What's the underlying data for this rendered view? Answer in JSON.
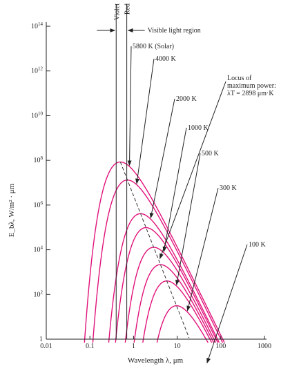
{
  "chart_data": {
    "type": "line",
    "title": "",
    "xlabel": "Wavelength λ, μm",
    "ylabel": "E_bλ, W/m² · μm",
    "x_scale": "log",
    "y_scale": "log",
    "xlim": [
      0.01,
      1000
    ],
    "ylim": [
      1,
      100000000000000.0
    ],
    "x_ticks": [
      {
        "v": 0.01,
        "label": "0.01"
      },
      {
        "v": 0.1,
        "label": "0.1"
      },
      {
        "v": 1,
        "label": "1"
      },
      {
        "v": 10,
        "label": "10"
      },
      {
        "v": 100,
        "label": "100"
      },
      {
        "v": 1000,
        "label": "1000"
      }
    ],
    "y_ticks": [
      {
        "v": 1,
        "base": "1",
        "exp": ""
      },
      {
        "v": 100,
        "base": "10",
        "exp": "2"
      },
      {
        "v": 10000,
        "base": "10",
        "exp": "4"
      },
      {
        "v": 1000000,
        "base": "10",
        "exp": "6"
      },
      {
        "v": 100000000,
        "base": "10",
        "exp": "8"
      },
      {
        "v": 10000000000,
        "base": "10",
        "exp": "10"
      },
      {
        "v": 1000000000000,
        "base": "10",
        "exp": "12"
      },
      {
        "v": 100000000000000,
        "base": "10",
        "exp": "14"
      }
    ],
    "series": [
      {
        "name": "5800 K (Solar)",
        "temperature_K": 5800
      },
      {
        "name": "4000 K",
        "temperature_K": 4000
      },
      {
        "name": "2000 K",
        "temperature_K": 2000
      },
      {
        "name": "1000 K",
        "temperature_K": 1000
      },
      {
        "name": "500 K",
        "temperature_K": 500
      },
      {
        "name": "300 K",
        "temperature_K": 300
      },
      {
        "name": "100 K",
        "temperature_K": 100
      }
    ],
    "extra_curves_K": [
      1500,
      700
    ],
    "line_color": "#e0117a",
    "visible_band": {
      "violet_um": 0.4,
      "red_um": 0.7,
      "violet_label": "Violet",
      "red_label": "Red",
      "label": "Visible light region"
    },
    "locus": {
      "label_lines": [
        "Locus of",
        "maximum power:",
        "λT = 2898 μm·K"
      ],
      "constant_um_K": 2898
    },
    "grid": false,
    "legend": "none"
  }
}
